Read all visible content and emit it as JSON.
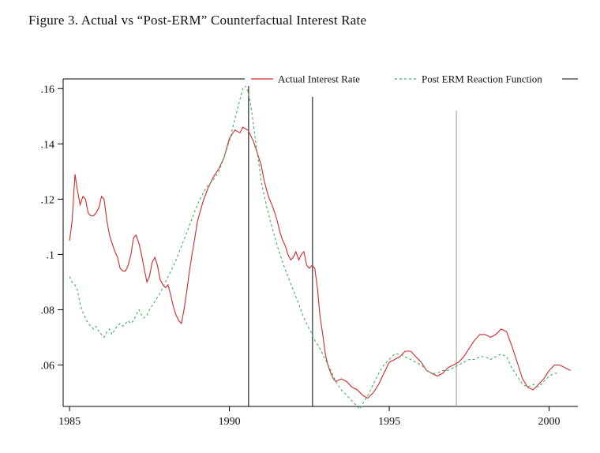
{
  "figure": {
    "title": "Figure 3.  Actual vs “Post-ERM” Counterfactual Interest Rate"
  },
  "chart_data": {
    "type": "line",
    "title": "Figure 3. Actual vs “Post-ERM” Counterfactual Interest Rate",
    "xlabel": "",
    "ylabel": "",
    "grid": false,
    "legend_position": "top",
    "xlim": [
      1984.8,
      2000.9
    ],
    "ylim": [
      0.045,
      0.1655
    ],
    "x_ticks": [
      1985,
      1990,
      1995,
      2000
    ],
    "x_tick_labels": [
      "1985",
      "1990",
      "1995",
      "2000"
    ],
    "y_ticks": [
      0.06,
      0.08,
      0.1,
      0.12,
      0.14,
      0.16
    ],
    "y_tick_labels": [
      ".06",
      ".08",
      ".1",
      ".12",
      ".14",
      ".16"
    ],
    "event_lines": [
      {
        "x": 1990.6,
        "top": 0.161,
        "color": "#000000"
      },
      {
        "x": 1992.6,
        "top": 0.157,
        "color": "#000000"
      },
      {
        "x": 1997.1,
        "top": 0.152,
        "color": "#999999"
      }
    ],
    "series": [
      {
        "name": "Actual Interest Rate",
        "color": "#cc2b2b",
        "style": "solid",
        "points": [
          [
            1985.0,
            0.105
          ],
          [
            1985.08,
            0.112
          ],
          [
            1985.17,
            0.129
          ],
          [
            1985.25,
            0.123
          ],
          [
            1985.33,
            0.118
          ],
          [
            1985.42,
            0.121
          ],
          [
            1985.5,
            0.12
          ],
          [
            1985.58,
            0.115
          ],
          [
            1985.67,
            0.114
          ],
          [
            1985.75,
            0.114
          ],
          [
            1985.83,
            0.115
          ],
          [
            1985.92,
            0.117
          ],
          [
            1986.0,
            0.121
          ],
          [
            1986.08,
            0.12
          ],
          [
            1986.17,
            0.112
          ],
          [
            1986.25,
            0.107
          ],
          [
            1986.33,
            0.104
          ],
          [
            1986.42,
            0.101
          ],
          [
            1986.5,
            0.099
          ],
          [
            1986.58,
            0.095
          ],
          [
            1986.67,
            0.094
          ],
          [
            1986.75,
            0.094
          ],
          [
            1986.83,
            0.096
          ],
          [
            1986.92,
            0.1
          ],
          [
            1987.0,
            0.106
          ],
          [
            1987.08,
            0.107
          ],
          [
            1987.17,
            0.104
          ],
          [
            1987.25,
            0.1
          ],
          [
            1987.33,
            0.095
          ],
          [
            1987.42,
            0.09
          ],
          [
            1987.5,
            0.092
          ],
          [
            1987.58,
            0.097
          ],
          [
            1987.67,
            0.099
          ],
          [
            1987.75,
            0.096
          ],
          [
            1987.83,
            0.091
          ],
          [
            1987.92,
            0.089
          ],
          [
            1988.0,
            0.088
          ],
          [
            1988.08,
            0.089
          ],
          [
            1988.17,
            0.085
          ],
          [
            1988.25,
            0.081
          ],
          [
            1988.33,
            0.078
          ],
          [
            1988.42,
            0.076
          ],
          [
            1988.5,
            0.075
          ],
          [
            1988.58,
            0.08
          ],
          [
            1988.67,
            0.087
          ],
          [
            1988.75,
            0.094
          ],
          [
            1988.83,
            0.1
          ],
          [
            1988.92,
            0.106
          ],
          [
            1989.0,
            0.112
          ],
          [
            1989.17,
            0.119
          ],
          [
            1989.33,
            0.124
          ],
          [
            1989.5,
            0.128
          ],
          [
            1989.67,
            0.131
          ],
          [
            1989.83,
            0.135
          ],
          [
            1990.0,
            0.142
          ],
          [
            1990.17,
            0.145
          ],
          [
            1990.33,
            0.144
          ],
          [
            1990.42,
            0.146
          ],
          [
            1990.58,
            0.145
          ],
          [
            1990.75,
            0.141
          ],
          [
            1990.92,
            0.135
          ],
          [
            1991.0,
            0.132
          ],
          [
            1991.08,
            0.127
          ],
          [
            1991.17,
            0.123
          ],
          [
            1991.25,
            0.12
          ],
          [
            1991.33,
            0.118
          ],
          [
            1991.42,
            0.115
          ],
          [
            1991.5,
            0.112
          ],
          [
            1991.58,
            0.108
          ],
          [
            1991.67,
            0.105
          ],
          [
            1991.75,
            0.103
          ],
          [
            1991.83,
            0.1
          ],
          [
            1991.92,
            0.098
          ],
          [
            1992.0,
            0.099
          ],
          [
            1992.08,
            0.101
          ],
          [
            1992.17,
            0.098
          ],
          [
            1992.25,
            0.1
          ],
          [
            1992.33,
            0.101
          ],
          [
            1992.42,
            0.096
          ],
          [
            1992.5,
            0.095
          ],
          [
            1992.58,
            0.096
          ],
          [
            1992.67,
            0.095
          ],
          [
            1992.75,
            0.088
          ],
          [
            1992.83,
            0.078
          ],
          [
            1992.92,
            0.071
          ],
          [
            1993.0,
            0.064
          ],
          [
            1993.08,
            0.06
          ],
          [
            1993.17,
            0.057
          ],
          [
            1993.25,
            0.055
          ],
          [
            1993.33,
            0.054
          ],
          [
            1993.5,
            0.055
          ],
          [
            1993.67,
            0.054
          ],
          [
            1993.83,
            0.052
          ],
          [
            1994.0,
            0.051
          ],
          [
            1994.17,
            0.049
          ],
          [
            1994.33,
            0.048
          ],
          [
            1994.5,
            0.05
          ],
          [
            1994.67,
            0.053
          ],
          [
            1994.83,
            0.057
          ],
          [
            1995.0,
            0.061
          ],
          [
            1995.17,
            0.062
          ],
          [
            1995.33,
            0.063
          ],
          [
            1995.5,
            0.065
          ],
          [
            1995.67,
            0.065
          ],
          [
            1995.83,
            0.063
          ],
          [
            1996.0,
            0.061
          ],
          [
            1996.17,
            0.058
          ],
          [
            1996.33,
            0.057
          ],
          [
            1996.5,
            0.056
          ],
          [
            1996.67,
            0.057
          ],
          [
            1996.83,
            0.059
          ],
          [
            1997.0,
            0.06
          ],
          [
            1997.17,
            0.061
          ],
          [
            1997.33,
            0.063
          ],
          [
            1997.5,
            0.066
          ],
          [
            1997.67,
            0.069
          ],
          [
            1997.83,
            0.071
          ],
          [
            1998.0,
            0.071
          ],
          [
            1998.17,
            0.07
          ],
          [
            1998.33,
            0.071
          ],
          [
            1998.5,
            0.073
          ],
          [
            1998.67,
            0.072
          ],
          [
            1998.83,
            0.067
          ],
          [
            1999.0,
            0.061
          ],
          [
            1999.17,
            0.055
          ],
          [
            1999.33,
            0.052
          ],
          [
            1999.5,
            0.051
          ],
          [
            1999.67,
            0.053
          ],
          [
            1999.83,
            0.055
          ],
          [
            2000.0,
            0.058
          ],
          [
            2000.17,
            0.06
          ],
          [
            2000.33,
            0.06
          ],
          [
            2000.5,
            0.059
          ],
          [
            2000.67,
            0.058
          ]
        ]
      },
      {
        "name": "Post ERM Reaction Function",
        "color": "#3faf5f",
        "style": "dashed",
        "points": [
          [
            1985.0,
            0.092
          ],
          [
            1985.08,
            0.09
          ],
          [
            1985.17,
            0.089
          ],
          [
            1985.25,
            0.087
          ],
          [
            1985.33,
            0.082
          ],
          [
            1985.42,
            0.079
          ],
          [
            1985.5,
            0.077
          ],
          [
            1985.58,
            0.075
          ],
          [
            1985.67,
            0.074
          ],
          [
            1985.75,
            0.073
          ],
          [
            1985.83,
            0.074
          ],
          [
            1985.92,
            0.072
          ],
          [
            1986.0,
            0.071
          ],
          [
            1986.08,
            0.07
          ],
          [
            1986.17,
            0.072
          ],
          [
            1986.25,
            0.073
          ],
          [
            1986.33,
            0.071
          ],
          [
            1986.42,
            0.073
          ],
          [
            1986.5,
            0.074
          ],
          [
            1986.58,
            0.075
          ],
          [
            1986.67,
            0.074
          ],
          [
            1986.75,
            0.075
          ],
          [
            1986.83,
            0.076
          ],
          [
            1986.92,
            0.075
          ],
          [
            1987.0,
            0.076
          ],
          [
            1987.08,
            0.078
          ],
          [
            1987.17,
            0.08
          ],
          [
            1987.25,
            0.078
          ],
          [
            1987.33,
            0.077
          ],
          [
            1987.42,
            0.078
          ],
          [
            1987.5,
            0.08
          ],
          [
            1987.67,
            0.083
          ],
          [
            1987.83,
            0.086
          ],
          [
            1988.0,
            0.09
          ],
          [
            1988.17,
            0.094
          ],
          [
            1988.33,
            0.098
          ],
          [
            1988.5,
            0.103
          ],
          [
            1988.67,
            0.108
          ],
          [
            1988.83,
            0.113
          ],
          [
            1989.0,
            0.118
          ],
          [
            1989.17,
            0.122
          ],
          [
            1989.33,
            0.125
          ],
          [
            1989.5,
            0.127
          ],
          [
            1989.67,
            0.13
          ],
          [
            1989.83,
            0.135
          ],
          [
            1990.0,
            0.141
          ],
          [
            1990.17,
            0.149
          ],
          [
            1990.33,
            0.156
          ],
          [
            1990.42,
            0.16
          ],
          [
            1990.5,
            0.161
          ],
          [
            1990.58,
            0.159
          ],
          [
            1990.67,
            0.154
          ],
          [
            1990.75,
            0.147
          ],
          [
            1990.83,
            0.14
          ],
          [
            1990.92,
            0.133
          ],
          [
            1991.0,
            0.126
          ],
          [
            1991.17,
            0.117
          ],
          [
            1991.33,
            0.11
          ],
          [
            1991.5,
            0.103
          ],
          [
            1991.67,
            0.097
          ],
          [
            1991.83,
            0.092
          ],
          [
            1992.0,
            0.087
          ],
          [
            1992.17,
            0.082
          ],
          [
            1992.33,
            0.077
          ],
          [
            1992.5,
            0.073
          ],
          [
            1992.67,
            0.069
          ],
          [
            1992.83,
            0.066
          ],
          [
            1993.0,
            0.062
          ],
          [
            1993.17,
            0.058
          ],
          [
            1993.33,
            0.054
          ],
          [
            1993.5,
            0.051
          ],
          [
            1993.67,
            0.049
          ],
          [
            1993.83,
            0.047
          ],
          [
            1994.0,
            0.045
          ],
          [
            1994.08,
            0.044
          ],
          [
            1994.17,
            0.046
          ],
          [
            1994.33,
            0.049
          ],
          [
            1994.5,
            0.053
          ],
          [
            1994.67,
            0.057
          ],
          [
            1994.83,
            0.06
          ],
          [
            1995.0,
            0.062
          ],
          [
            1995.17,
            0.064
          ],
          [
            1995.33,
            0.064
          ],
          [
            1995.5,
            0.063
          ],
          [
            1995.67,
            0.062
          ],
          [
            1995.83,
            0.061
          ],
          [
            1996.0,
            0.06
          ],
          [
            1996.17,
            0.058
          ],
          [
            1996.33,
            0.057
          ],
          [
            1996.5,
            0.057
          ],
          [
            1996.67,
            0.058
          ],
          [
            1996.83,
            0.058
          ],
          [
            1997.0,
            0.059
          ],
          [
            1997.17,
            0.06
          ],
          [
            1997.33,
            0.061
          ],
          [
            1997.5,
            0.062
          ],
          [
            1997.67,
            0.062
          ],
          [
            1997.83,
            0.063
          ],
          [
            1998.0,
            0.063
          ],
          [
            1998.17,
            0.062
          ],
          [
            1998.33,
            0.063
          ],
          [
            1998.5,
            0.064
          ],
          [
            1998.67,
            0.063
          ],
          [
            1998.83,
            0.059
          ],
          [
            1999.0,
            0.056
          ],
          [
            1999.17,
            0.053
          ],
          [
            1999.33,
            0.052
          ],
          [
            1999.5,
            0.053
          ],
          [
            1999.67,
            0.052
          ],
          [
            1999.83,
            0.054
          ],
          [
            2000.0,
            0.056
          ],
          [
            2000.17,
            0.057
          ],
          [
            2000.33,
            0.057
          ]
        ]
      }
    ]
  }
}
